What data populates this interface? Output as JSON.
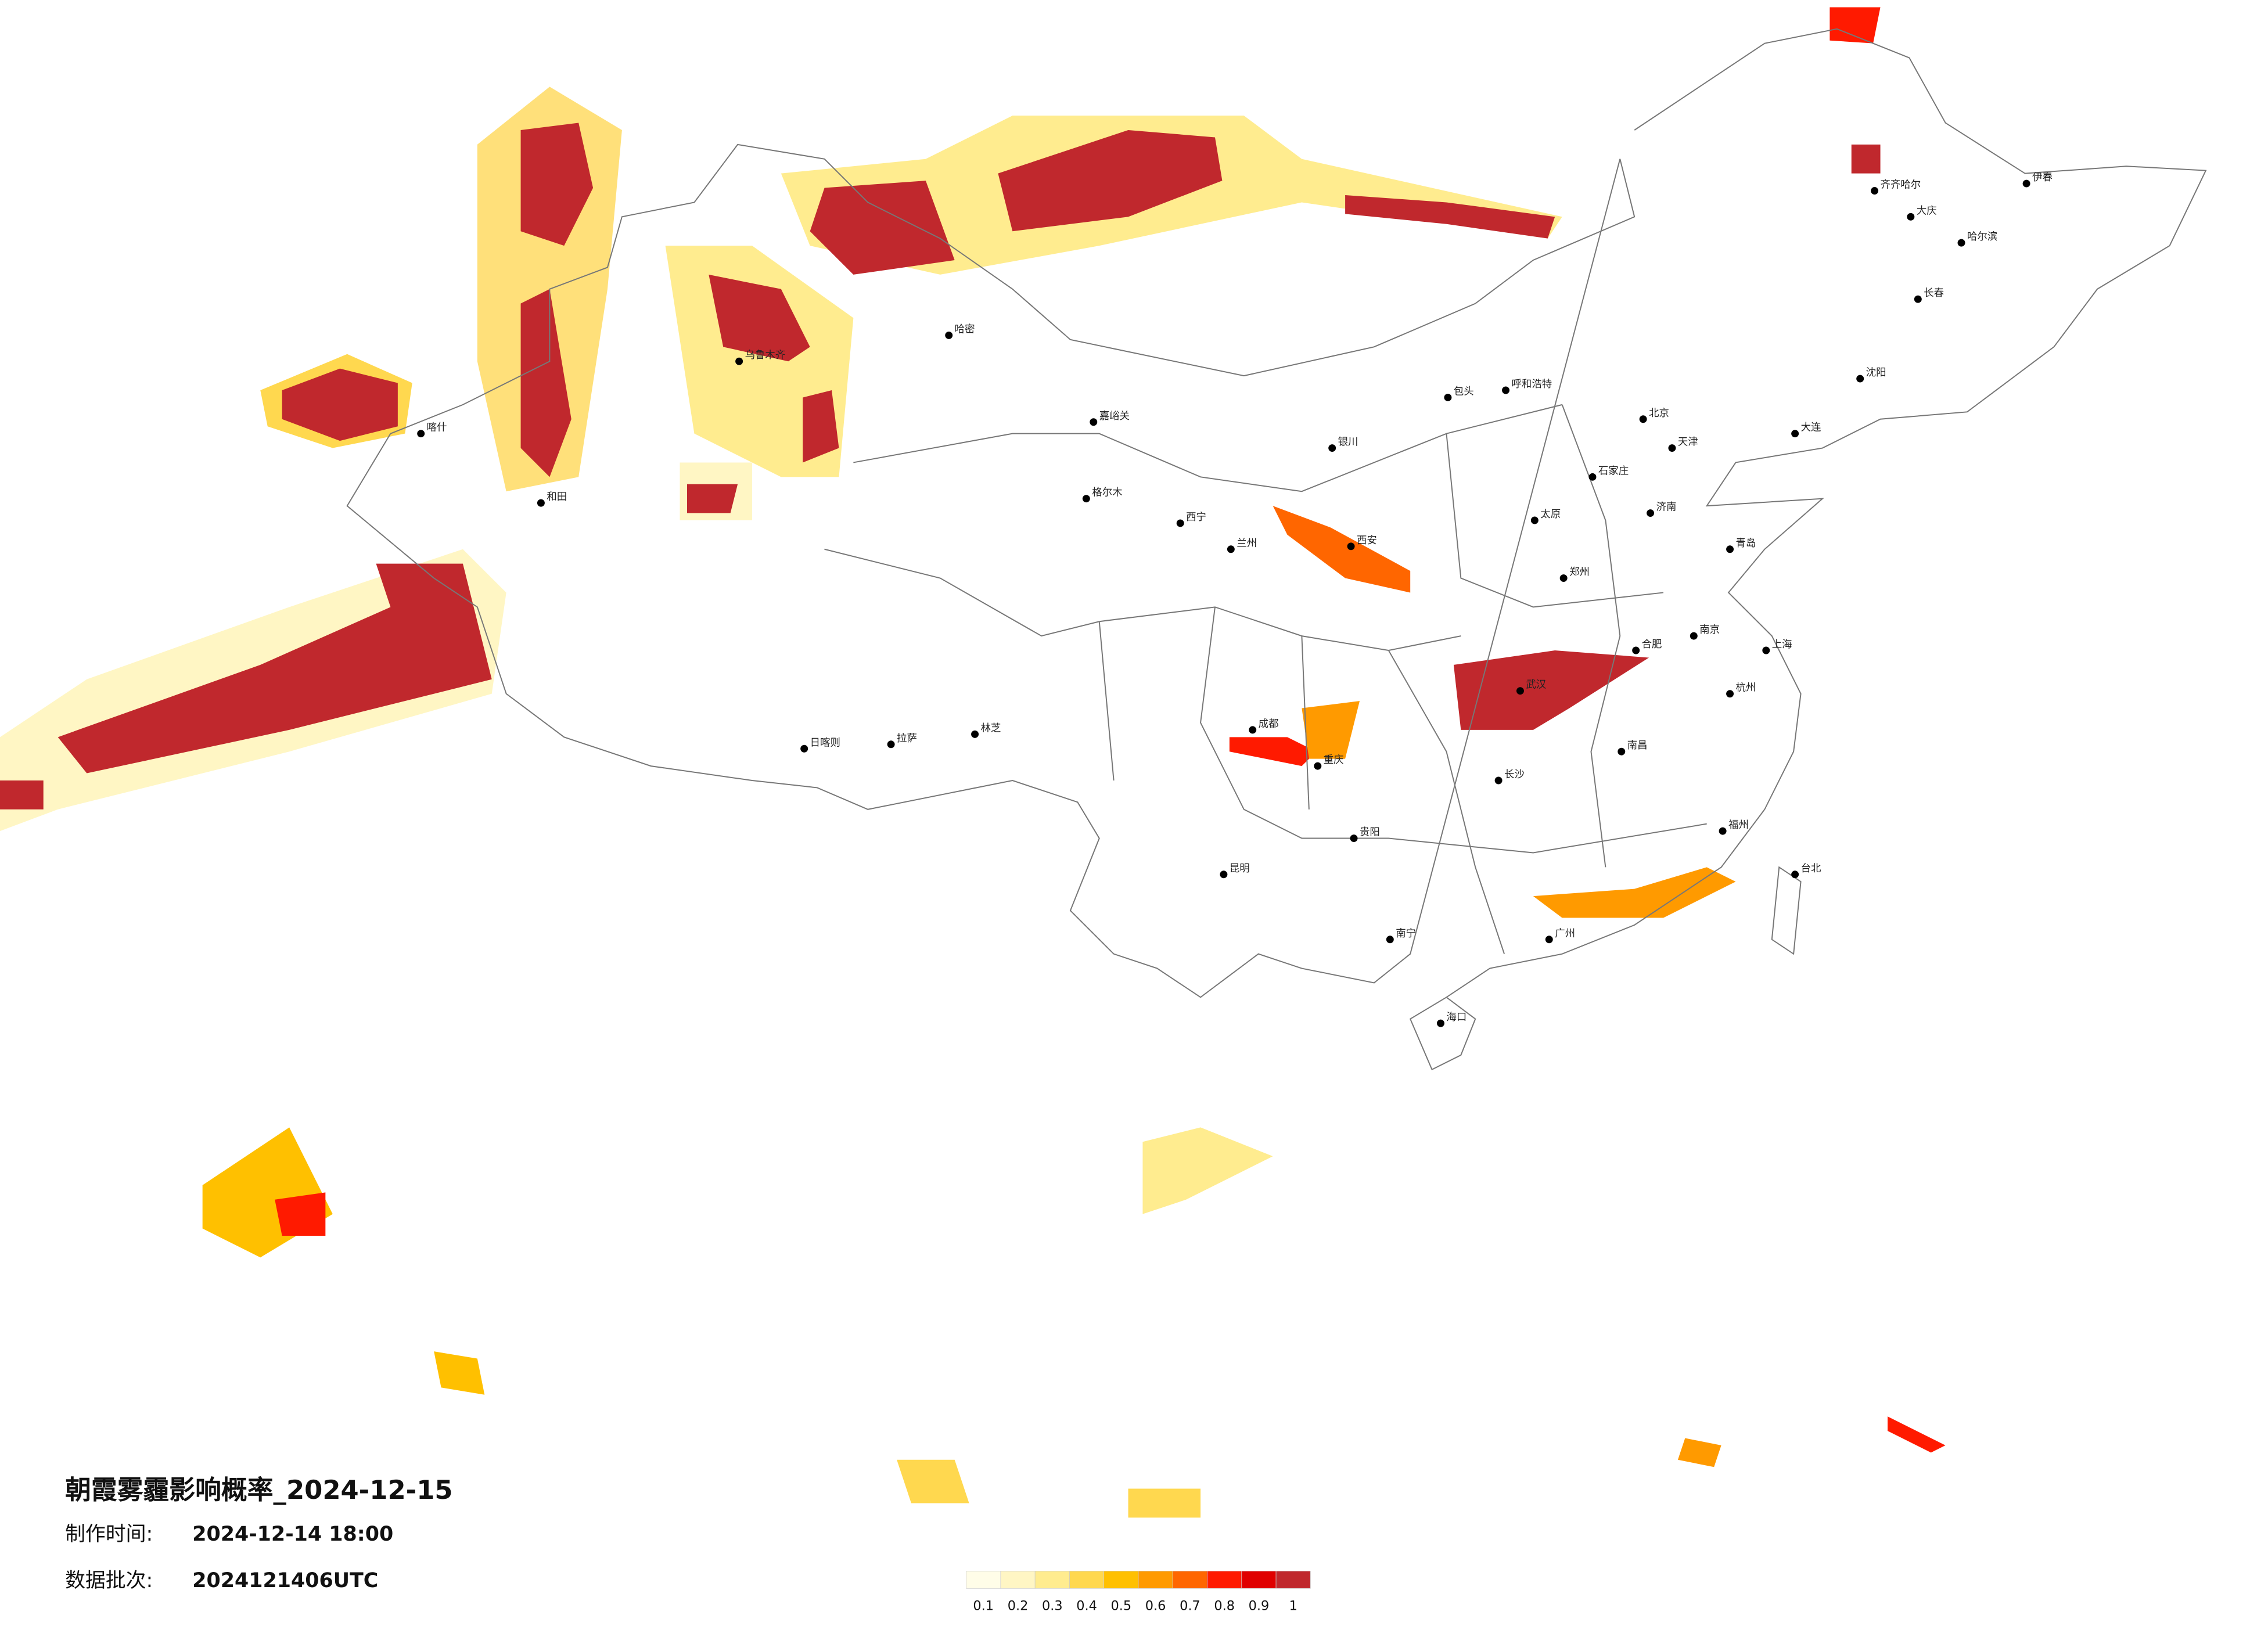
{
  "title": "朝霞雾霾影响概率_2024-12-15",
  "made_time": {
    "label": "制作时间:",
    "value": "2024-12-14 18:00"
  },
  "batch": {
    "label": "数据批次:",
    "value": "2024121406UTC"
  },
  "legend": {
    "colors": [
      "#fffde8",
      "#fff6c4",
      "#ffec8f",
      "#ffd84f",
      "#ffc000",
      "#ff9a00",
      "#ff6600",
      "#ff1a00",
      "#e00000",
      "#c0282d"
    ],
    "ticks": [
      0.1,
      0.2,
      0.3,
      0.4,
      0.5,
      0.6,
      0.7,
      0.8,
      0.9,
      1
    ]
  },
  "cities": [
    "哈尔滨",
    "长春",
    "沈阳",
    "北京",
    "天津",
    "石家庄",
    "太原",
    "呼和浩特",
    "济南",
    "郑州",
    "西安",
    "兰州",
    "西宁",
    "银川",
    "乌鲁木齐",
    "拉萨",
    "成都",
    "重庆",
    "贵阳",
    "昆明",
    "南宁",
    "广州",
    "长沙",
    "武汉",
    "南昌",
    "合肥",
    "南京",
    "上海",
    "杭州",
    "福州",
    "台北",
    "海口",
    "喀什",
    "和田",
    "伊春",
    "齐齐哈尔",
    "大庆",
    "日喀则",
    "林芝",
    "嘉峪关",
    "哈密",
    "格尔木",
    "包头",
    "大连",
    "青岛"
  ]
}
